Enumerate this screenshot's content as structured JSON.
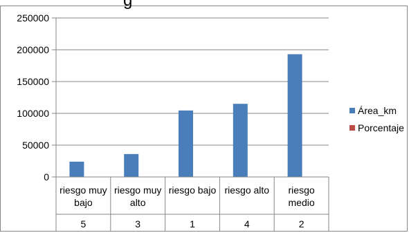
{
  "chart_data": {
    "type": "bar",
    "title_partial": "g",
    "categories": [
      {
        "label_line1": "riesgo  muy",
        "label_line2": "bajo",
        "code": "5"
      },
      {
        "label_line1": "riesgo  muy",
        "label_line2": "alto",
        "code": "3"
      },
      {
        "label_line1": "riesgo  bajo",
        "label_line2": "",
        "code": "1"
      },
      {
        "label_line1": "riesgo alto",
        "label_line2": "",
        "code": "4"
      },
      {
        "label_line1": "riesgo",
        "label_line2": "medio",
        "code": "2"
      }
    ],
    "series": [
      {
        "name": "Área_km",
        "color": "#4a7ebb",
        "values": [
          24000,
          36000,
          104500,
          115000,
          193000
        ]
      },
      {
        "name": "Porcentaje",
        "color": "#be4b48",
        "values": [
          0,
          0,
          0,
          0,
          0
        ]
      }
    ],
    "ylim": [
      0,
      250000
    ],
    "yticks": [
      "0",
      "50000",
      "100000",
      "150000",
      "200000",
      "250000"
    ],
    "grid": true,
    "legend_position": "right"
  }
}
